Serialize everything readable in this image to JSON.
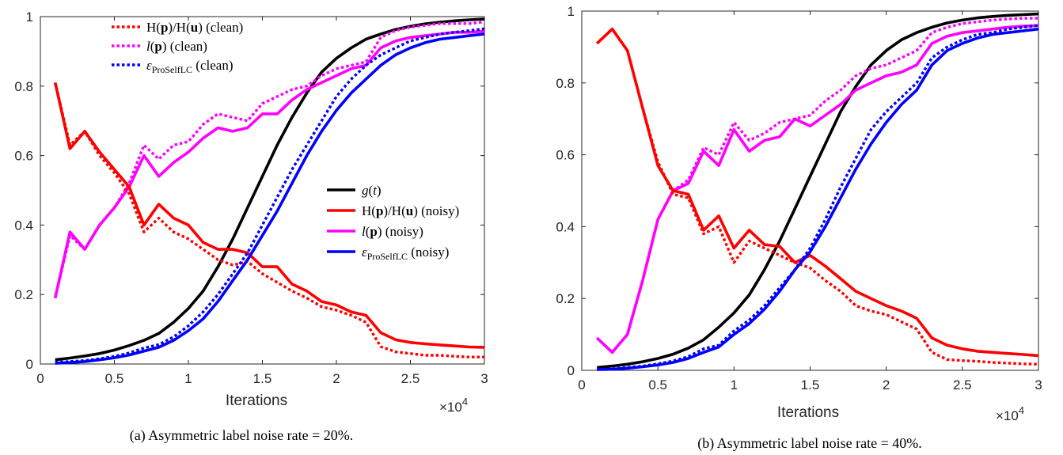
{
  "chart_data": [
    {
      "type": "line",
      "caption": "(a) Asymmetric label noise rate = 20%.",
      "xlabel": "Iterations",
      "x_exponent_label": "×10",
      "x_exponent_power": "4",
      "xlim": [
        0,
        30000
      ],
      "ylim": [
        0,
        1
      ],
      "xticks": [
        0,
        5000,
        10000,
        15000,
        20000,
        25000,
        30000
      ],
      "xtick_labels": [
        "0",
        "0.5",
        "1",
        "1.5",
        "2",
        "2.5",
        "3"
      ],
      "yticks": [
        0,
        0.2,
        0.4,
        0.6,
        0.8,
        1
      ],
      "ytick_labels": [
        "0",
        "0.2",
        "0.4",
        "0.6",
        "0.8",
        "1"
      ],
      "grid": false,
      "legend_clean_position": "top-left",
      "legend_noisy_position": "center-right",
      "x": [
        1000,
        2000,
        3000,
        4000,
        5000,
        6000,
        7000,
        8000,
        9000,
        10000,
        11000,
        12000,
        13000,
        14000,
        15000,
        16000,
        17000,
        18000,
        19000,
        20000,
        21000,
        22000,
        23000,
        24000,
        25000,
        26000,
        27000,
        28000,
        29000,
        30000
      ],
      "series": [
        {
          "name": "H(p)/H(u) (clean)",
          "color": "#ff0000",
          "style": "dotted",
          "values": [
            0.81,
            0.63,
            0.67,
            0.6,
            0.55,
            0.49,
            0.38,
            0.42,
            0.38,
            0.36,
            0.33,
            0.3,
            0.285,
            0.295,
            0.26,
            0.235,
            0.21,
            0.19,
            0.165,
            0.155,
            0.14,
            0.12,
            0.05,
            0.035,
            0.03,
            0.025,
            0.025,
            0.022,
            0.02,
            0.02
          ]
        },
        {
          "name": "l(p) (clean)",
          "color": "#ff00ff",
          "style": "dotted",
          "values": [
            0.19,
            0.37,
            0.33,
            0.4,
            0.45,
            0.52,
            0.63,
            0.59,
            0.63,
            0.64,
            0.69,
            0.72,
            0.71,
            0.7,
            0.75,
            0.77,
            0.79,
            0.8,
            0.83,
            0.85,
            0.86,
            0.87,
            0.94,
            0.96,
            0.97,
            0.975,
            0.98,
            0.98,
            0.98,
            0.985
          ]
        },
        {
          "name": "εProSelfLC (clean)",
          "color": "#0000ff",
          "style": "dotted",
          "values": [
            0.005,
            0.007,
            0.01,
            0.015,
            0.022,
            0.032,
            0.046,
            0.056,
            0.078,
            0.11,
            0.15,
            0.2,
            0.26,
            0.32,
            0.4,
            0.48,
            0.56,
            0.63,
            0.7,
            0.77,
            0.82,
            0.86,
            0.89,
            0.91,
            0.93,
            0.94,
            0.95,
            0.955,
            0.96,
            0.965
          ]
        },
        {
          "name": "g(t)",
          "color": "#000000",
          "style": "solid",
          "values": [
            0.012,
            0.017,
            0.023,
            0.03,
            0.04,
            0.053,
            0.068,
            0.088,
            0.12,
            0.16,
            0.21,
            0.28,
            0.36,
            0.45,
            0.54,
            0.63,
            0.71,
            0.78,
            0.84,
            0.88,
            0.91,
            0.935,
            0.95,
            0.963,
            0.972,
            0.979,
            0.984,
            0.988,
            0.991,
            0.993
          ]
        },
        {
          "name": "H(p)/H(u) (noisy)",
          "color": "#ff0000",
          "style": "solid",
          "values": [
            0.81,
            0.62,
            0.67,
            0.61,
            0.56,
            0.51,
            0.4,
            0.46,
            0.42,
            0.4,
            0.35,
            0.33,
            0.33,
            0.32,
            0.28,
            0.28,
            0.23,
            0.21,
            0.18,
            0.17,
            0.15,
            0.14,
            0.09,
            0.07,
            0.062,
            0.058,
            0.055,
            0.052,
            0.049,
            0.048
          ]
        },
        {
          "name": "l(p) (noisy)",
          "color": "#ff00ff",
          "style": "solid",
          "values": [
            0.19,
            0.38,
            0.33,
            0.4,
            0.45,
            0.51,
            0.6,
            0.54,
            0.58,
            0.61,
            0.65,
            0.68,
            0.67,
            0.68,
            0.72,
            0.72,
            0.76,
            0.79,
            0.81,
            0.83,
            0.85,
            0.86,
            0.91,
            0.93,
            0.94,
            0.945,
            0.95,
            0.955,
            0.955,
            0.958
          ]
        },
        {
          "name": "εProSelfLC (noisy)",
          "color": "#0000ff",
          "style": "solid",
          "values": [
            0.002,
            0.004,
            0.007,
            0.012,
            0.018,
            0.026,
            0.037,
            0.048,
            0.068,
            0.096,
            0.13,
            0.18,
            0.24,
            0.3,
            0.37,
            0.44,
            0.52,
            0.6,
            0.67,
            0.73,
            0.78,
            0.82,
            0.86,
            0.89,
            0.91,
            0.925,
            0.935,
            0.94,
            0.945,
            0.95
          ]
        }
      ]
    },
    {
      "type": "line",
      "caption": "(b) Asymmetric label noise rate = 40%.",
      "xlabel": "Iterations",
      "x_exponent_label": "×10",
      "x_exponent_power": "4",
      "xlim": [
        0,
        30000
      ],
      "ylim": [
        0,
        1
      ],
      "xticks": [
        0,
        5000,
        10000,
        15000,
        20000,
        25000,
        30000
      ],
      "xtick_labels": [
        "0",
        "0.5",
        "1",
        "1.5",
        "2",
        "2.5",
        "3"
      ],
      "yticks": [
        0,
        0.2,
        0.4,
        0.6,
        0.8,
        1
      ],
      "ytick_labels": [
        "0",
        "0.2",
        "0.4",
        "0.6",
        "0.8",
        "1"
      ],
      "grid": false,
      "x": [
        1000,
        2000,
        3000,
        4000,
        5000,
        6000,
        7000,
        8000,
        9000,
        10000,
        11000,
        12000,
        13000,
        14000,
        15000,
        16000,
        17000,
        18000,
        19000,
        20000,
        21000,
        22000,
        23000,
        24000,
        25000,
        26000,
        27000,
        28000,
        29000,
        30000
      ],
      "series": [
        {
          "name": "H(p)/H(u) (clean)",
          "color": "#ff0000",
          "style": "dotted",
          "values": [
            0.91,
            0.95,
            0.89,
            0.73,
            0.58,
            0.49,
            0.48,
            0.38,
            0.4,
            0.3,
            0.36,
            0.34,
            0.32,
            0.3,
            0.285,
            0.25,
            0.22,
            0.18,
            0.165,
            0.155,
            0.135,
            0.115,
            0.05,
            0.03,
            0.027,
            0.025,
            0.022,
            0.02,
            0.018,
            0.017
          ]
        },
        {
          "name": "l(p) (clean)",
          "color": "#ff00ff",
          "style": "dotted",
          "values": [
            0.09,
            0.05,
            0.1,
            0.25,
            0.42,
            0.5,
            0.53,
            0.62,
            0.6,
            0.69,
            0.64,
            0.66,
            0.69,
            0.7,
            0.71,
            0.75,
            0.78,
            0.82,
            0.84,
            0.85,
            0.87,
            0.89,
            0.94,
            0.955,
            0.965,
            0.97,
            0.975,
            0.978,
            0.98,
            0.98
          ]
        },
        {
          "name": "εProSelfLC (clean)",
          "color": "#0000ff",
          "style": "dotted",
          "values": [
            0.003,
            0.004,
            0.008,
            0.012,
            0.018,
            0.026,
            0.038,
            0.06,
            0.07,
            0.11,
            0.14,
            0.18,
            0.23,
            0.28,
            0.34,
            0.42,
            0.51,
            0.59,
            0.67,
            0.72,
            0.76,
            0.8,
            0.87,
            0.9,
            0.92,
            0.935,
            0.94,
            0.95,
            0.955,
            0.96
          ]
        },
        {
          "name": "g(t)",
          "color": "#000000",
          "style": "solid",
          "values": [
            0.008,
            0.012,
            0.017,
            0.024,
            0.033,
            0.045,
            0.062,
            0.085,
            0.12,
            0.16,
            0.21,
            0.28,
            0.36,
            0.45,
            0.54,
            0.63,
            0.72,
            0.79,
            0.85,
            0.89,
            0.92,
            0.94,
            0.955,
            0.967,
            0.975,
            0.981,
            0.985,
            0.988,
            0.99,
            0.992
          ]
        },
        {
          "name": "H(p)/H(u) (noisy)",
          "color": "#ff0000",
          "style": "solid",
          "values": [
            0.91,
            0.95,
            0.89,
            0.73,
            0.57,
            0.5,
            0.49,
            0.39,
            0.43,
            0.34,
            0.39,
            0.35,
            0.345,
            0.3,
            0.32,
            0.29,
            0.255,
            0.22,
            0.2,
            0.18,
            0.165,
            0.145,
            0.09,
            0.07,
            0.06,
            0.053,
            0.05,
            0.047,
            0.044,
            0.041
          ]
        },
        {
          "name": "l(p) (noisy)",
          "color": "#ff00ff",
          "style": "solid",
          "values": [
            0.09,
            0.05,
            0.1,
            0.25,
            0.42,
            0.5,
            0.52,
            0.61,
            0.57,
            0.67,
            0.61,
            0.64,
            0.65,
            0.7,
            0.68,
            0.71,
            0.74,
            0.78,
            0.8,
            0.82,
            0.83,
            0.85,
            0.91,
            0.93,
            0.94,
            0.945,
            0.95,
            0.955,
            0.958,
            0.96
          ]
        },
        {
          "name": "εProSelfLC (noisy)",
          "color": "#0000ff",
          "style": "solid",
          "values": [
            0.002,
            0.003,
            0.006,
            0.01,
            0.015,
            0.022,
            0.033,
            0.05,
            0.065,
            0.1,
            0.13,
            0.17,
            0.22,
            0.28,
            0.33,
            0.4,
            0.48,
            0.56,
            0.63,
            0.69,
            0.74,
            0.78,
            0.85,
            0.89,
            0.91,
            0.925,
            0.935,
            0.94,
            0.945,
            0.95
          ]
        }
      ]
    }
  ],
  "legend_a": {
    "clean": [
      {
        "label_main": "H(",
        "label_p": "p",
        "label_mid": ")/H(",
        "label_u": "u",
        "label_end": ") (clean)",
        "color": "#ff0000",
        "style": "dotted"
      },
      {
        "label_main": "l(",
        "label_p": "p",
        "label_end": ") (clean)",
        "color": "#ff00ff",
        "style": "dotted"
      },
      {
        "label_main": "ε",
        "label_sub": "ProSelfLC",
        "label_end": " (clean)",
        "color": "#0000ff",
        "style": "dotted"
      }
    ],
    "noisy": [
      {
        "label_main": "g(t)",
        "color": "#000000",
        "style": "solid"
      },
      {
        "label_main": "H(",
        "label_p": "p",
        "label_mid": ")/H(",
        "label_u": "u",
        "label_end": ") (noisy)",
        "color": "#ff0000",
        "style": "solid"
      },
      {
        "label_main": "l(",
        "label_p": "p",
        "label_end": ") (noisy)",
        "color": "#ff00ff",
        "style": "solid"
      },
      {
        "label_main": "ε",
        "label_sub": "ProSelfLC",
        "label_end": " (noisy)",
        "color": "#0000ff",
        "style": "solid"
      }
    ]
  }
}
